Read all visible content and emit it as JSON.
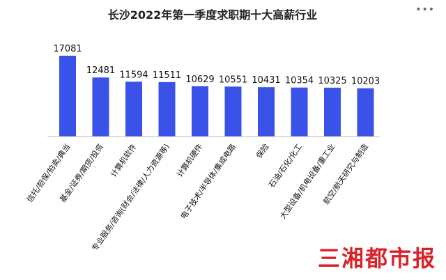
{
  "chart_data": {
    "type": "bar",
    "title": "长沙2022年第一季度求职期十大高薪行业",
    "categories": [
      "信托/担保/拍卖/典当",
      "基金/证券/期货/投资",
      "计算机软件",
      "专业服务/咨询(财会/法律/人力资源等)",
      "计算机硬件",
      "电子技术/半导体/集成电路",
      "保险",
      "石油/石化/化工",
      "大型设备/机电设备/重工业",
      "航空/航天研究与制造"
    ],
    "values": [
      17081,
      12481,
      11594,
      11511,
      10629,
      10551,
      10431,
      10354,
      10325,
      10203
    ],
    "ylim": [
      0,
      17500
    ],
    "bar_color": "#3a52e8",
    "grid": false,
    "xlabel": "",
    "ylabel": ""
  },
  "watermark": {
    "text": "三湘都市报",
    "color": "#d8232a"
  },
  "menu_icon": "more-dots-icon"
}
